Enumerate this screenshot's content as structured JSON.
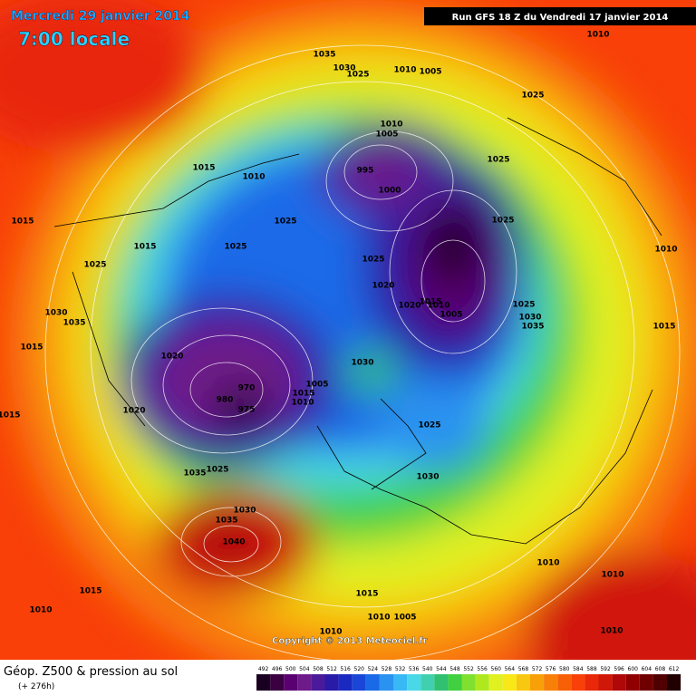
{
  "header": {
    "date": "Mercredi 29 janvier 2014",
    "time": "7:00 locale",
    "run": "Run GFS 18 Z du Vendredi 17 janvier 2014"
  },
  "footer": {
    "title": "Géop. Z500 & pression au sol",
    "lead": "(+ 276h)",
    "copyright": "Copyright © 2013 Meteociel.fr"
  },
  "scale": {
    "values": [
      492,
      496,
      500,
      504,
      508,
      512,
      516,
      520,
      524,
      528,
      532,
      536,
      540,
      544,
      548,
      552,
      556,
      560,
      564,
      568,
      572,
      576,
      580,
      584,
      588,
      592,
      596,
      600,
      604,
      608,
      612
    ],
    "colors": [
      "#1a0020",
      "#3a0040",
      "#5a0070",
      "#6e1a8a",
      "#4a1a9a",
      "#2a1aa8",
      "#1a2ac0",
      "#1a46d8",
      "#1a6ae8",
      "#2a92f0",
      "#38b8f4",
      "#48d8e8",
      "#40d0b0",
      "#30c070",
      "#40d040",
      "#80e030",
      "#b0e820",
      "#e0f020",
      "#f8e818",
      "#f8c810",
      "#f8a008",
      "#f88008",
      "#f86008",
      "#f84008",
      "#e82808",
      "#d01808",
      "#b00808",
      "#900000",
      "#700000",
      "#500000",
      "#200000"
    ]
  },
  "map": {
    "isobar_labels": [
      1035,
      1030,
      1025,
      1010,
      1005,
      1010,
      1025,
      1010,
      1005,
      995,
      1000,
      1025,
      1015,
      1010,
      1025,
      1025,
      1010,
      1015,
      1015,
      1025,
      1025,
      1025,
      1020,
      1020,
      1015,
      1010,
      1005,
      1025,
      1030,
      1035,
      1015,
      1030,
      1035,
      1015,
      1020,
      1030,
      970,
      980,
      975,
      1005,
      1015,
      1010,
      1020,
      1015,
      1025,
      1035,
      1025,
      1030,
      1030,
      1035,
      1040,
      1010,
      1010,
      1015,
      1015,
      1010,
      1010,
      1005,
      1010,
      1010
    ]
  }
}
